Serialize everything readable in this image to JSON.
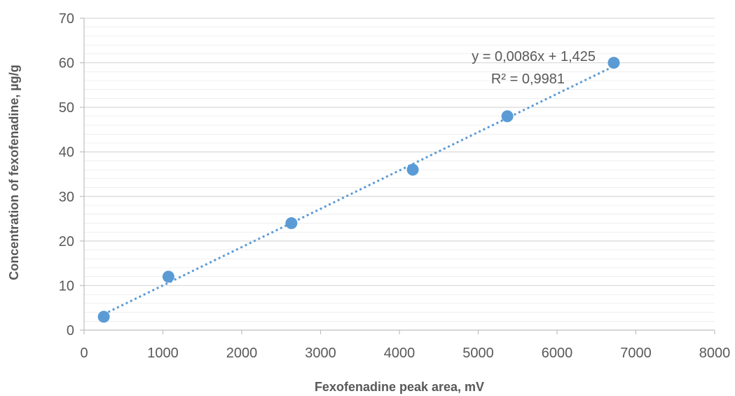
{
  "chart_data": {
    "type": "scatter",
    "title": "",
    "xlabel": "Fexofenadine peak area, mV",
    "ylabel": "Concentration of fexofenadine, µg/g",
    "xlim": [
      0,
      8000
    ],
    "ylim": [
      0,
      70
    ],
    "x_ticks": [
      "0",
      "1000",
      "2000",
      "3000",
      "4000",
      "5000",
      "6000",
      "7000",
      "8000"
    ],
    "y_ticks": [
      "0",
      "10",
      "20",
      "30",
      "40",
      "50",
      "60",
      "70"
    ],
    "grid": true,
    "series": [
      {
        "points": [
          {
            "x": 250,
            "y": 3
          },
          {
            "x": 1070,
            "y": 12
          },
          {
            "x": 2630,
            "y": 24
          },
          {
            "x": 4170,
            "y": 36
          },
          {
            "x": 5370,
            "y": 48
          },
          {
            "x": 6720,
            "y": 60
          }
        ]
      }
    ],
    "trendline": {
      "type": "linear",
      "style": "dotted",
      "slope": 0.0086,
      "intercept": 1.425,
      "x_range": [
        250,
        6720
      ],
      "equation_label": "y = 0,0086x + 1,425",
      "r2_label": "R² = 0,9981"
    },
    "colors": {
      "marker": "#5b9bd5",
      "trendline": "#5b9bd5",
      "grid": "#d9d9d9",
      "text": "#595959"
    }
  }
}
